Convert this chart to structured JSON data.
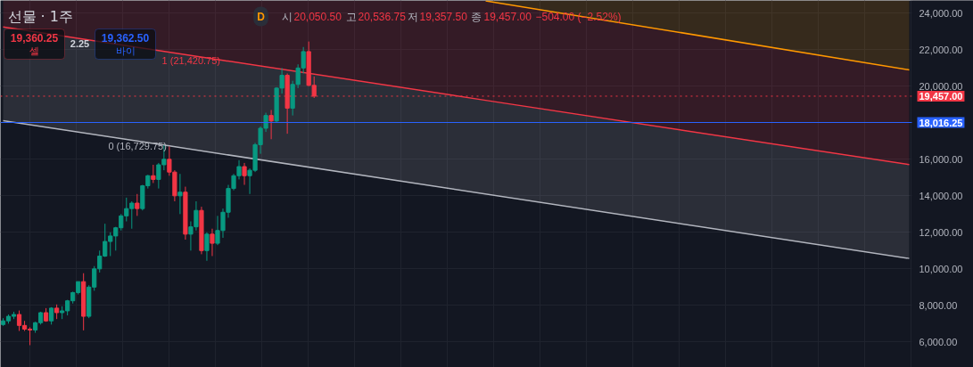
{
  "chart_data": {
    "type": "candlestick",
    "title": "선물 · 1주",
    "annotations": [
      "19,360.25",
      "셀",
      "2.25",
      "19,362.50",
      "바이",
      "D",
      "시",
      "20,050.50",
      "고",
      "20,536.75",
      "저",
      "19,357.50",
      "종",
      "19,457.00",
      "−504.00 (−2.52%)"
    ],
    "categories": [
      null,
      null,
      null,
      null,
      null,
      null,
      null,
      null,
      null,
      null,
      null,
      null,
      null,
      null,
      null,
      null,
      null,
      null,
      null,
      null,
      null,
      null,
      null,
      null,
      null,
      null,
      null,
      null,
      null,
      null,
      null,
      null,
      null,
      null,
      null,
      null,
      null,
      null,
      null,
      null,
      null,
      null,
      null,
      null,
      null,
      null,
      null,
      null,
      null,
      null,
      null,
      null,
      null,
      null,
      null,
      null,
      null,
      null,
      null,
      null,
      null,
      null,
      null,
      null,
      null,
      null,
      null,
      null,
      null,
      null,
      null,
      null,
      null,
      null,
      null,
      null,
      null,
      null,
      null,
      null,
      null,
      null,
      null,
      null,
      null,
      null,
      null,
      null,
      null,
      null,
      null,
      null,
      null,
      null,
      null,
      null,
      null,
      null,
      null,
      null,
      null,
      null,
      null,
      null,
      null,
      null,
      null,
      null,
      null,
      null,
      null,
      null,
      null,
      null,
      null,
      null,
      null,
      null,
      null,
      null,
      null,
      null,
      null,
      null,
      null,
      null,
      null,
      null,
      null,
      null,
      null,
      null,
      null,
      null,
      null,
      null,
      null,
      null,
      null,
      null,
      null,
      null,
      null,
      null,
      null,
      null,
      null,
      null,
      null,
      null,
      null,
      null,
      null,
      null,
      null,
      null,
      null,
      null,
      null,
      null,
      null,
      null,
      null,
      null,
      null,
      null,
      null,
      null,
      null,
      null
    ],
    "ohlc": [
      [
        6950,
        7300,
        6880,
        7150
      ],
      [
        7150,
        7500,
        7000,
        7400
      ],
      [
        7400,
        7650,
        7250,
        7500
      ],
      [
        7500,
        7720,
        6600,
        6900
      ],
      [
        6900,
        7150,
        6600,
        6700
      ],
      [
        6700,
        6800,
        5820,
        6650
      ],
      [
        6650,
        7100,
        6500,
        7050
      ],
      [
        7050,
        7650,
        6950,
        7600
      ],
      [
        7600,
        7850,
        7100,
        7150
      ],
      [
        7150,
        7900,
        6950,
        7850
      ],
      [
        7850,
        8050,
        7250,
        7600
      ],
      [
        7600,
        7950,
        7250,
        7700
      ],
      [
        7700,
        8300,
        7450,
        8250
      ],
      [
        8250,
        8750,
        8100,
        8700
      ],
      [
        8700,
        9300,
        8600,
        9300
      ],
      [
        9300,
        9760,
        6630,
        7400
      ],
      [
        7400,
        9100,
        7300,
        9000
      ],
      [
        9000,
        10150,
        8800,
        10000
      ],
      [
        10000,
        11000,
        9800,
        10700
      ],
      [
        10700,
        12470,
        10650,
        11500
      ],
      [
        11500,
        12000,
        10700,
        11800
      ],
      [
        11800,
        12300,
        11000,
        12250
      ],
      [
        12250,
        13000,
        12100,
        12900
      ],
      [
        12900,
        13900,
        12600,
        13300
      ],
      [
        13300,
        13700,
        12200,
        13600
      ],
      [
        13600,
        14100,
        12900,
        13300
      ],
      [
        13300,
        14600,
        13200,
        14550
      ],
      [
        14550,
        15150,
        14400,
        15100
      ],
      [
        15100,
        15700,
        14700,
        14900
      ],
      [
        14900,
        15800,
        14400,
        15700
      ],
      [
        15700,
        16770,
        15400,
        16000
      ],
      [
        16000,
        16700,
        15100,
        15300
      ],
      [
        15300,
        15400,
        13700,
        14000
      ],
      [
        14000,
        15200,
        13000,
        14200
      ],
      [
        14200,
        14500,
        11600,
        11900
      ],
      [
        11900,
        12600,
        11000,
        12300
      ],
      [
        12300,
        13700,
        12100,
        13200
      ],
      [
        13200,
        13400,
        10800,
        11000
      ],
      [
        11000,
        12000,
        10440,
        11900
      ],
      [
        11900,
        12200,
        10700,
        11400
      ],
      [
        11400,
        12900,
        11300,
        12100
      ],
      [
        12100,
        13300,
        11700,
        13100
      ],
      [
        13100,
        14600,
        12800,
        14400
      ],
      [
        14400,
        15200,
        14300,
        15100
      ],
      [
        15100,
        15950,
        14900,
        15600
      ],
      [
        15600,
        15800,
        14600,
        15100
      ],
      [
        15100,
        15500,
        14100,
        15400
      ],
      [
        15400,
        16900,
        15300,
        16800
      ],
      [
        16800,
        17800,
        16300,
        17700
      ],
      [
        17700,
        18550,
        17500,
        18400
      ],
      [
        18400,
        18700,
        17100,
        18100
      ],
      [
        18100,
        19950,
        18000,
        19900
      ],
      [
        19900,
        21000,
        19600,
        20600
      ],
      [
        20600,
        20700,
        17400,
        18800
      ],
      [
        18800,
        20300,
        18400,
        20100
      ],
      [
        20100,
        21200,
        19900,
        21000
      ],
      [
        21000,
        22150,
        20700,
        21900
      ],
      [
        21900,
        22450,
        20000,
        20050.5
      ],
      [
        20050.5,
        20536.75,
        19357.5,
        19457
      ],
      null,
      null,
      null,
      null,
      null,
      null,
      null,
      null,
      null,
      null,
      null,
      null,
      null,
      null,
      null,
      null,
      null,
      null,
      null,
      null,
      null,
      null,
      null,
      null,
      null,
      null,
      null,
      null,
      null,
      null,
      null,
      null,
      null,
      null,
      null,
      null,
      null,
      null,
      null,
      null,
      null,
      null,
      null,
      null,
      null,
      null,
      null,
      null,
      null,
      null,
      null,
      null,
      null,
      null,
      null,
      null,
      null,
      null,
      null,
      null,
      null,
      null,
      null,
      null,
      null,
      null,
      null,
      null,
      null,
      null,
      null,
      null,
      null,
      null,
      null,
      null,
      null,
      null,
      null,
      null,
      null,
      null,
      null,
      null,
      null,
      null,
      null,
      null,
      null,
      null,
      null,
      null,
      null,
      null,
      null,
      null,
      null,
      null,
      null,
      null,
      null,
      null,
      null,
      null,
      null,
      null,
      null,
      null,
      null,
      null,
      null
    ],
    "colors": [
      "#089981",
      "#089981",
      "#089981",
      "#f23645",
      "#f23645",
      "#f23645",
      "#089981",
      "#089981",
      "#f23645",
      "#089981",
      "#f23645",
      "#089981",
      "#089981",
      "#089981",
      "#089981",
      "#f23645",
      "#089981",
      "#089981",
      "#089981",
      "#089981",
      "#089981",
      "#089981",
      "#089981",
      "#089981",
      "#089981",
      "#f23645",
      "#089981",
      "#089981",
      "#f23645",
      "#089981",
      "#089981",
      "#f23645",
      "#f23645",
      "#089981",
      "#f23645",
      "#089981",
      "#089981",
      "#f23645",
      "#089981",
      "#f23645",
      "#089981",
      "#089981",
      "#089981",
      "#089981",
      "#089981",
      "#f23645",
      "#089981",
      "#089981",
      "#089981",
      "#089981",
      "#f23645",
      "#089981",
      "#089981",
      "#f23645",
      "#089981",
      "#089981",
      "#089981",
      "#f23645",
      "#f23645",
      null,
      null,
      null,
      null,
      null,
      null,
      null,
      null,
      null,
      null,
      null,
      null,
      null,
      null,
      null,
      null,
      null,
      null,
      null,
      null,
      null,
      null,
      null,
      null,
      null,
      null,
      null,
      null,
      null,
      null,
      null,
      null,
      null,
      null,
      null,
      null,
      null,
      null,
      null,
      null,
      null,
      null,
      null,
      null,
      null,
      null,
      null,
      null,
      null,
      null,
      null,
      null,
      null,
      null,
      null,
      null,
      null,
      null,
      null,
      null,
      null,
      null,
      null,
      null,
      null,
      null,
      null,
      null,
      null,
      null,
      null,
      null,
      null,
      null,
      null,
      null,
      null,
      null,
      null,
      null,
      null,
      null,
      null,
      null,
      null,
      null,
      null,
      null,
      null,
      null,
      null,
      null,
      null,
      null,
      null,
      null,
      null,
      null,
      null,
      null,
      null,
      null,
      null,
      null,
      null,
      null,
      null,
      null,
      null,
      null,
      null
    ],
    "series": [
      {
        "type": "line",
        "name": "0 (16,729.75)",
        "color": "#b2b5be",
        "values": [
          18110,
          null,
          null,
          null,
          null,
          null,
          null,
          null,
          null,
          null,
          null,
          null,
          null,
          null,
          null,
          null,
          null,
          null,
          null,
          null,
          null,
          null,
          null,
          null,
          null,
          null,
          null,
          null,
          null,
          null,
          null,
          16730,
          null,
          null,
          null,
          null,
          null,
          null,
          null,
          null,
          null,
          null,
          null,
          null,
          null,
          null,
          null,
          null,
          null,
          null,
          null,
          null,
          null,
          null,
          null,
          null,
          null,
          null,
          null,
          null,
          null,
          null,
          null,
          null,
          null,
          null,
          null,
          null,
          null,
          null,
          null,
          null,
          null,
          null,
          null,
          null,
          null,
          null,
          null,
          null,
          null,
          null,
          null,
          null,
          null,
          null,
          null,
          null,
          null,
          null,
          null,
          null,
          null,
          null,
          null,
          null,
          null,
          null,
          null,
          null,
          null,
          null,
          null,
          null,
          null,
          null,
          null,
          null,
          null,
          null,
          null,
          null,
          null,
          null,
          null,
          null,
          null,
          null,
          null,
          null,
          null,
          null,
          null,
          null,
          null,
          null,
          null,
          null,
          null,
          null,
          null,
          null,
          null,
          null,
          null,
          null,
          null,
          null,
          null,
          null,
          null,
          null,
          null,
          null,
          null,
          null,
          null,
          null,
          null,
          null,
          null,
          null,
          null,
          null,
          null,
          null,
          null,
          null,
          null,
          null,
          null,
          null,
          null,
          null,
          null,
          null,
          null,
          null,
          null,
          10570
        ],
        "lower": [
          18110,
          null,
          null,
          null,
          null,
          null,
          null,
          null,
          null,
          null,
          null,
          null,
          null,
          null,
          null,
          null,
          null,
          null,
          null,
          null,
          null,
          null,
          null,
          null,
          null,
          null,
          null,
          null,
          null,
          null,
          null,
          16730,
          null,
          null,
          null,
          null,
          null,
          null,
          null,
          null,
          null,
          null,
          null,
          null,
          null,
          null,
          null,
          null,
          null,
          null,
          null,
          null,
          null,
          null,
          null,
          null,
          null,
          null,
          null,
          null,
          null,
          null,
          null,
          null,
          null,
          null,
          null,
          null,
          null,
          null,
          null,
          null,
          null,
          null,
          null,
          null,
          null,
          null,
          null,
          null,
          null,
          null,
          null,
          null,
          null,
          null,
          null,
          null,
          null,
          null,
          null,
          null,
          null,
          null,
          null,
          null,
          null,
          null,
          null,
          null,
          null,
          null,
          null,
          null,
          null,
          null,
          null,
          null,
          null,
          null,
          null,
          null,
          null,
          null,
          null,
          null,
          null,
          null,
          null,
          null,
          null,
          null,
          null,
          null,
          null,
          null,
          null,
          null,
          null,
          null,
          null,
          null,
          null,
          null,
          null,
          null,
          null,
          null,
          null,
          null,
          null,
          null,
          null,
          null,
          null,
          null,
          null,
          null,
          null,
          null,
          null,
          null,
          null,
          null,
          null,
          null,
          null,
          null,
          null,
          null,
          null,
          null,
          null,
          null,
          null,
          null,
          null,
          null,
          null,
          10570
        ],
        "upper": [
          23250,
          null,
          null,
          null,
          null,
          null,
          null,
          null,
          null,
          null,
          null,
          null,
          null,
          null,
          null,
          null,
          null,
          null,
          null,
          null,
          null,
          null,
          null,
          null,
          null,
          null,
          null,
          null,
          null,
          null,
          null,
          21870,
          null,
          null,
          null,
          null,
          null,
          null,
          null,
          null,
          null,
          null,
          null,
          null,
          null,
          null,
          null,
          null,
          null,
          null,
          null,
          null,
          null,
          null,
          null,
          null,
          null,
          null,
          null,
          null,
          null,
          null,
          null,
          null,
          null,
          null,
          null,
          null,
          null,
          null,
          null,
          null,
          null,
          null,
          null,
          null,
          null,
          null,
          null,
          null,
          null,
          null,
          null,
          null,
          null,
          null,
          null,
          null,
          null,
          null,
          null,
          null,
          null,
          null,
          null,
          null,
          null,
          null,
          null,
          null,
          null,
          null,
          null,
          null,
          null,
          null,
          null,
          null,
          null,
          null,
          null,
          null,
          null,
          null,
          null,
          null,
          null,
          null,
          null,
          null,
          null,
          null,
          null,
          null,
          null,
          null,
          null,
          null,
          null,
          null,
          null,
          null,
          null,
          null,
          null,
          null,
          null,
          null,
          null,
          null,
          null,
          null,
          null,
          null,
          null,
          null,
          null,
          null,
          null,
          null,
          null,
          null,
          null,
          null,
          null,
          null,
          null,
          null,
          null,
          null,
          null,
          null,
          null,
          null,
          null,
          null,
          null,
          null,
          null,
          15710
        ]
      },
      {
        "type": "line",
        "name": "1 (21,420.75)",
        "color": "#f23645",
        "values": [
          23250,
          null,
          null,
          null,
          null,
          null,
          null,
          null,
          null,
          null,
          null,
          null,
          null,
          null,
          null,
          null,
          null,
          null,
          null,
          null,
          null,
          null,
          null,
          null,
          null,
          null,
          null,
          null,
          null,
          null,
          null,
          null,
          null,
          null,
          null,
          null,
          null,
          null,
          null,
          null,
          null,
          21420,
          null,
          null,
          null,
          null,
          null,
          null,
          null,
          null,
          null,
          null,
          null,
          null,
          null,
          null,
          null,
          null,
          null,
          null,
          null,
          null,
          null,
          null,
          null,
          null,
          null,
          null,
          null,
          null,
          null,
          null,
          null,
          null,
          null,
          null,
          null,
          null,
          null,
          null,
          null,
          null,
          null,
          null,
          null,
          null,
          null,
          null,
          null,
          null,
          19230,
          null,
          null,
          null,
          null,
          null,
          null,
          null,
          null,
          null,
          null,
          null,
          null,
          null,
          null,
          null,
          null,
          null,
          null,
          null,
          null,
          null,
          null,
          null,
          null,
          null,
          null,
          null,
          null,
          null,
          null,
          null,
          null,
          null,
          null,
          null,
          null,
          null,
          null,
          null,
          null,
          null,
          null,
          null,
          null,
          null,
          null,
          null,
          null,
          null,
          null,
          null,
          null,
          null,
          null,
          null,
          null,
          null,
          null,
          null,
          null,
          null,
          null,
          null,
          null,
          null,
          null,
          null,
          null,
          null,
          null,
          null,
          null,
          null,
          null,
          null,
          null,
          null,
          null,
          15710
        ],
        "lower": [
          23250,
          null,
          null,
          null,
          null,
          null,
          null,
          null,
          null,
          null,
          null,
          null,
          null,
          null,
          null,
          null,
          null,
          null,
          null,
          null,
          null,
          null,
          null,
          null,
          null,
          null,
          null,
          null,
          null,
          null,
          null,
          null,
          null,
          null,
          null,
          null,
          null,
          null,
          null,
          null,
          null,
          21420,
          null,
          null,
          null,
          null,
          null,
          null,
          null,
          null,
          null,
          null,
          null,
          null,
          null,
          null,
          null,
          null,
          null,
          null,
          null,
          null,
          null,
          null,
          null,
          null,
          null,
          null,
          null,
          null,
          null,
          null,
          null,
          null,
          null,
          null,
          null,
          null,
          null,
          null,
          null,
          null,
          null,
          null,
          null,
          null,
          null,
          null,
          null,
          null,
          19230,
          null,
          null,
          null,
          null,
          null,
          null,
          null,
          null,
          null,
          null,
          null,
          null,
          null,
          null,
          null,
          null,
          null,
          null,
          null,
          null,
          null,
          null,
          null,
          null,
          null,
          null,
          null,
          null,
          null,
          null,
          null,
          null,
          null,
          null,
          null,
          null,
          null,
          null,
          null,
          null,
          null,
          null,
          null,
          null,
          null,
          null,
          null,
          null,
          null,
          null,
          null,
          null,
          null,
          null,
          null,
          null,
          null,
          null,
          null,
          null,
          null,
          null,
          null,
          null,
          null,
          null,
          null,
          null,
          null,
          null,
          null,
          null,
          null,
          null,
          null,
          null,
          null,
          null,
          15710
        ],
        "upper": [
          24700,
          null,
          null,
          null,
          null,
          null,
          null,
          null,
          null,
          null,
          null,
          null,
          null,
          null,
          null,
          null,
          null,
          null,
          null,
          null,
          null,
          null,
          null,
          null,
          null,
          null,
          null,
          null,
          null,
          null,
          null,
          null,
          null,
          null,
          null,
          null,
          null,
          null,
          null,
          null,
          null,
          24700,
          null,
          null,
          null,
          null,
          null,
          null,
          null,
          null,
          null,
          null,
          null,
          null,
          null,
          null,
          null,
          null,
          null,
          null,
          null,
          null,
          null,
          null,
          null,
          null,
          null,
          null,
          null,
          null,
          null,
          null,
          null,
          null,
          null,
          null,
          null,
          null,
          null,
          null,
          null,
          null,
          null,
          null,
          null,
          null,
          null,
          null,
          null,
          null,
          24680,
          null,
          null,
          null,
          null,
          null,
          null,
          null,
          null,
          null,
          null,
          null,
          null,
          null,
          null,
          null,
          null,
          null,
          null,
          null,
          null,
          null,
          null,
          null,
          null,
          null,
          null,
          null,
          null,
          null,
          null,
          null,
          null,
          null,
          null,
          null,
          null,
          null,
          null,
          null,
          null,
          null,
          null,
          null,
          null,
          null,
          null,
          null,
          null,
          null,
          null,
          null,
          null,
          null,
          null,
          null,
          null,
          null,
          null,
          null,
          null,
          null,
          null,
          null,
          null,
          null,
          null,
          null,
          null,
          null,
          null,
          null,
          null,
          null,
          null,
          null,
          null,
          null,
          null,
          20900
        ]
      },
      {
        "type": "line",
        "color": "#ff9800",
        "values": [
          null,
          null,
          null,
          null,
          null,
          null,
          null,
          null,
          null,
          null,
          null,
          null,
          null,
          null,
          null,
          null,
          null,
          null,
          null,
          null,
          null,
          null,
          null,
          null,
          null,
          null,
          null,
          null,
          null,
          null,
          null,
          null,
          null,
          null,
          null,
          null,
          null,
          null,
          null,
          null,
          null,
          null,
          null,
          null,
          null,
          null,
          null,
          null,
          null,
          null,
          null,
          null,
          null,
          null,
          null,
          null,
          null,
          null,
          null,
          null,
          null,
          null,
          null,
          null,
          null,
          null,
          null,
          null,
          null,
          null,
          null,
          null,
          null,
          null,
          null,
          null,
          null,
          null,
          null,
          null,
          null,
          null,
          null,
          null,
          null,
          null,
          null,
          null,
          null,
          null,
          24680,
          null,
          null,
          null,
          null,
          null,
          null,
          null,
          null,
          null,
          null,
          null,
          null,
          null,
          null,
          null,
          null,
          null,
          null,
          null,
          null,
          null,
          null,
          null,
          null,
          null,
          null,
          null,
          null,
          null,
          null,
          null,
          null,
          null,
          null,
          null,
          null,
          null,
          null,
          null,
          null,
          null,
          null,
          null,
          null,
          null,
          null,
          null,
          null,
          null,
          null,
          null,
          null,
          null,
          null,
          null,
          null,
          null,
          null,
          null,
          null,
          null,
          null,
          null,
          null,
          null,
          null,
          null,
          null,
          null,
          null,
          null,
          null,
          null,
          null,
          null,
          null,
          null,
          null,
          20900
        ],
        "lower": [
          null,
          null,
          null,
          null,
          null,
          null,
          null,
          null,
          null,
          null,
          null,
          null,
          null,
          null,
          null,
          null,
          null,
          null,
          null,
          null,
          null,
          null,
          null,
          null,
          null,
          null,
          null,
          null,
          null,
          null,
          null,
          null,
          null,
          null,
          null,
          null,
          null,
          null,
          null,
          null,
          null,
          null,
          null,
          null,
          null,
          null,
          null,
          null,
          null,
          null,
          null,
          null,
          null,
          null,
          null,
          null,
          null,
          null,
          null,
          null,
          null,
          null,
          null,
          null,
          null,
          null,
          null,
          null,
          null,
          null,
          null,
          null,
          null,
          null,
          null,
          null,
          null,
          null,
          null,
          null,
          null,
          null,
          null,
          null,
          null,
          null,
          null,
          null,
          null,
          null,
          24680,
          null,
          null,
          null,
          null,
          null,
          null,
          null,
          null,
          null,
          null,
          null,
          null,
          null,
          null,
          null,
          null,
          null,
          null,
          null,
          null,
          null,
          null,
          null,
          null,
          null,
          null,
          null,
          null,
          null,
          null,
          null,
          null,
          null,
          null,
          null,
          null,
          null,
          null,
          null,
          null,
          null,
          null,
          null,
          null,
          null,
          null,
          null,
          null,
          null,
          null,
          null,
          null,
          null,
          null,
          null,
          null,
          null,
          null,
          null,
          null,
          null,
          null,
          null,
          null,
          null,
          null,
          null,
          null,
          null,
          null,
          null,
          null,
          null,
          null,
          null,
          null,
          null,
          null,
          20900
        ],
        "upper": [
          null,
          null,
          null,
          null,
          null,
          null,
          null,
          null,
          null,
          null,
          null,
          null,
          null,
          null,
          null,
          null,
          null,
          null,
          null,
          null,
          null,
          null,
          null,
          null,
          null,
          null,
          null,
          null,
          null,
          null,
          null,
          null,
          null,
          null,
          null,
          null,
          null,
          null,
          null,
          null,
          null,
          null,
          null,
          null,
          null,
          null,
          null,
          null,
          null,
          null,
          null,
          null,
          null,
          null,
          null,
          null,
          null,
          null,
          null,
          null,
          null,
          null,
          null,
          null,
          null,
          null,
          null,
          null,
          null,
          null,
          null,
          null,
          null,
          null,
          null,
          null,
          null,
          null,
          null,
          null,
          null,
          null,
          null,
          null,
          null,
          null,
          null,
          null,
          null,
          null,
          24700,
          null,
          null,
          null,
          null,
          null,
          null,
          null,
          null,
          null,
          null,
          null,
          null,
          null,
          null,
          null,
          null,
          null,
          null,
          null,
          null,
          null,
          null,
          null,
          null,
          null,
          null,
          null,
          null,
          null,
          null,
          null,
          null,
          null,
          null,
          null,
          null,
          null,
          null,
          null,
          null,
          null,
          null,
          null,
          null,
          null,
          null,
          null,
          null,
          null,
          null,
          null,
          null,
          null,
          null,
          null,
          null,
          null,
          null,
          null,
          null,
          null,
          null,
          null,
          null,
          null,
          null,
          null,
          null,
          null,
          null,
          null,
          null,
          null,
          null,
          null,
          null,
          null,
          null,
          24700
        ]
      }
    ],
    "ylim": [
      4600,
      24700
    ],
    "yticks": [
      {
        "value": 6000,
        "label": "6,000.00"
      },
      {
        "value": 8000,
        "label": "8,000.00"
      },
      {
        "value": 10000,
        "label": "10,000.00"
      },
      {
        "value": 12000,
        "label": "12,000.00"
      },
      {
        "value": 14000,
        "label": "14,000.00"
      },
      {
        "value": 16000,
        "label": "16,000.00"
      },
      {
        "value": 18000,
        "label": null
      },
      {
        "value": 20000,
        "label": "20,000.00"
      },
      {
        "value": 22000,
        "label": "22,000.00"
      },
      {
        "value": 24000,
        "label": "24,000.00"
      }
    ],
    "ref_lines": [
      {
        "axis": "y",
        "value": 19457,
        "label": "19,457.00",
        "color": "#f23645",
        "line_style": "dotted"
      },
      {
        "axis": "y",
        "value": 18016.25,
        "label": "18,016.25",
        "color": "#2962ff",
        "line_style": "solid"
      }
    ],
    "grid": true,
    "legend": false,
    "tick_labels": "y"
  }
}
